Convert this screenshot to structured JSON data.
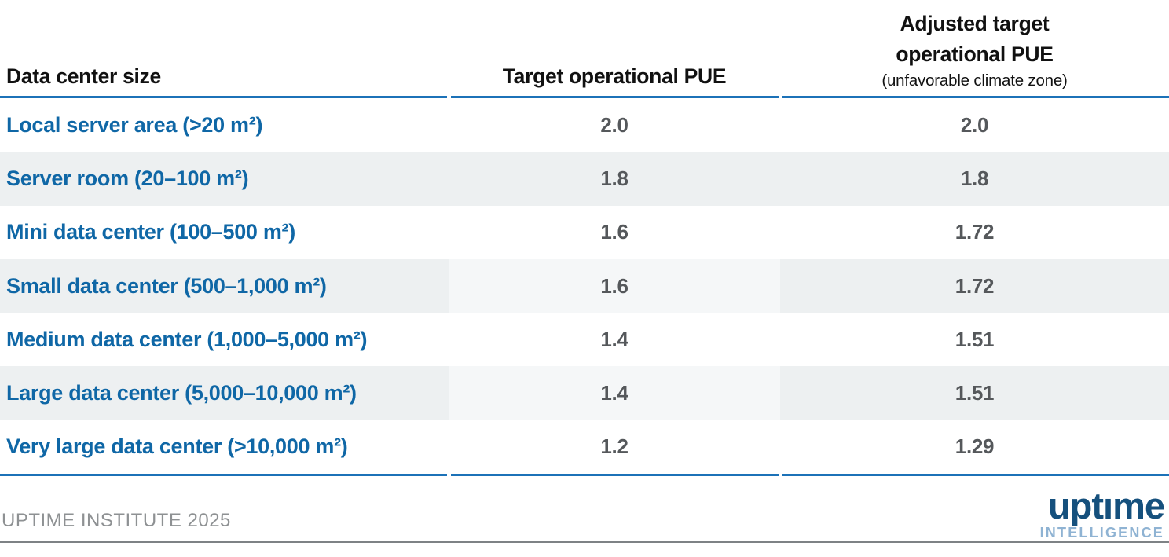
{
  "header": {
    "col1": "Data center size",
    "col2": "Target operational PUE",
    "col3_title": "Adjusted target operational PUE",
    "col3_sub": "(unfavorable climate zone)"
  },
  "rows": [
    {
      "size": "Local server area (>20 m²)",
      "target": "2.0",
      "adjusted": "2.0"
    },
    {
      "size": "Server room (20–100 m²)",
      "target": "1.8",
      "adjusted": "1.8"
    },
    {
      "size": "Mini data center (100–500 m²)",
      "target": "1.6",
      "adjusted": "1.72"
    },
    {
      "size": "Small data center (500–1,000 m²)",
      "target": "1.6",
      "adjusted": "1.72"
    },
    {
      "size": "Medium data center (1,000–5,000 m²)",
      "target": "1.4",
      "adjusted": "1.51"
    },
    {
      "size": "Large data center (5,000–10,000 m²)",
      "target": "1.4",
      "adjusted": "1.51"
    },
    {
      "size": "Very large data center (>10,000 m²)",
      "target": "1.2",
      "adjusted": "1.29"
    }
  ],
  "footer": {
    "source": "UPTIME INSTITUTE 2025",
    "logo_wordmark": "uptıme",
    "logo_sub": "INTELLIGENCE"
  },
  "colors": {
    "label_blue": "#0f67a6",
    "value_gray": "#55585b",
    "header_black": "#111111",
    "stripe_gray": "#edf0f1",
    "stripe_light_gray": "#f5f7f8",
    "rule_blue": "#1c72b8",
    "source_gray": "#8e9193",
    "bottom_rule_gray": "#7e8285",
    "logo_navy": "#15507d",
    "logo_light_blue": "#8fb3d3"
  },
  "chart_data": {
    "type": "table",
    "columns": [
      "Data center size",
      "Target operational PUE",
      "Adjusted target operational PUE (unfavorable climate zone)"
    ],
    "rows": [
      [
        "Local server area (>20 m²)",
        2.0,
        2.0
      ],
      [
        "Server room (20–100 m²)",
        1.8,
        1.8
      ],
      [
        "Mini data center (100–500 m²)",
        1.6,
        1.72
      ],
      [
        "Small data center (500–1,000 m²)",
        1.6,
        1.72
      ],
      [
        "Medium data center (1,000–5,000 m²)",
        1.4,
        1.51
      ],
      [
        "Large data center (5,000–10,000 m²)",
        1.4,
        1.51
      ],
      [
        "Very large data center (>10,000 m²)",
        1.2,
        1.29
      ]
    ],
    "source": "UPTIME INSTITUTE 2025",
    "notes": "Rows 2, 4, 6 shaded light gray; first column labels blue; values gray bold"
  }
}
